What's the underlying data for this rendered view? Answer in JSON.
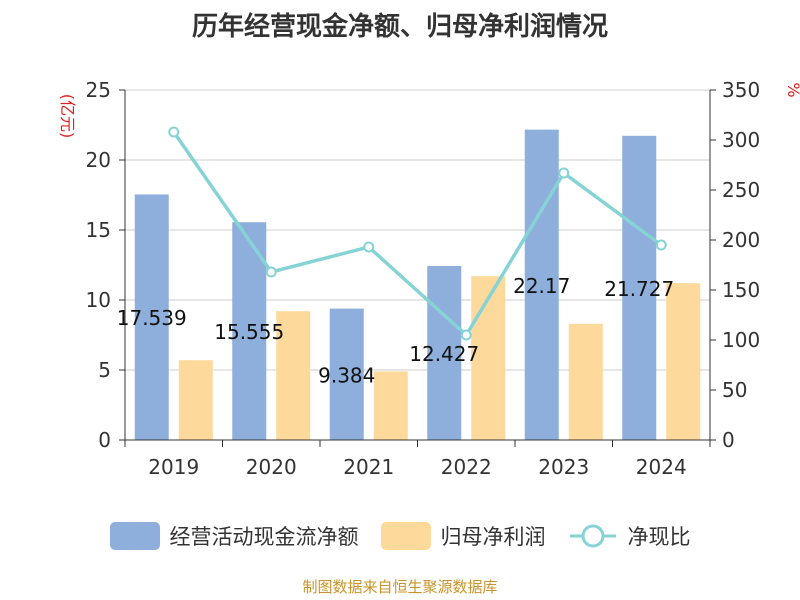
{
  "title": "历年经营现金净额、归母净利润情况",
  "footer": "制图数据来自恒生聚源数据库",
  "chart_data": {
    "type": "bar",
    "title": "历年经营现金净额、归母净利润情况",
    "categories": [
      "2019",
      "2020",
      "2021",
      "2022",
      "2023",
      "2024"
    ],
    "left_axis": {
      "unit": "(亿元)",
      "ylim": [
        0,
        25
      ],
      "ticks": [
        "0",
        "5",
        "10",
        "15",
        "20",
        "25"
      ]
    },
    "right_axis": {
      "unit": "%",
      "ylim": [
        0,
        350
      ],
      "ticks": [
        "0",
        "50",
        "100",
        "150",
        "200",
        "250",
        "300",
        "350"
      ]
    },
    "series": [
      {
        "name": "经营活动现金流净额",
        "kind": "bar",
        "axis": "left",
        "color": "#8eaedb",
        "values": [
          17.539,
          15.555,
          9.384,
          12.427,
          22.17,
          21.727
        ],
        "labels": [
          "17.539",
          "15.555",
          "9.384",
          "12.427",
          "22.17",
          "21.727"
        ]
      },
      {
        "name": "归母净利润",
        "kind": "bar",
        "axis": "left",
        "color": "#fdd99b",
        "values": [
          5.7,
          9.2,
          4.9,
          11.7,
          8.3,
          11.2
        ]
      },
      {
        "name": "净现比",
        "kind": "line",
        "axis": "right",
        "color": "#86d3d6",
        "values": [
          308,
          168,
          193,
          105,
          267,
          195
        ]
      }
    ],
    "grid": true,
    "legend_position": "bottom"
  }
}
